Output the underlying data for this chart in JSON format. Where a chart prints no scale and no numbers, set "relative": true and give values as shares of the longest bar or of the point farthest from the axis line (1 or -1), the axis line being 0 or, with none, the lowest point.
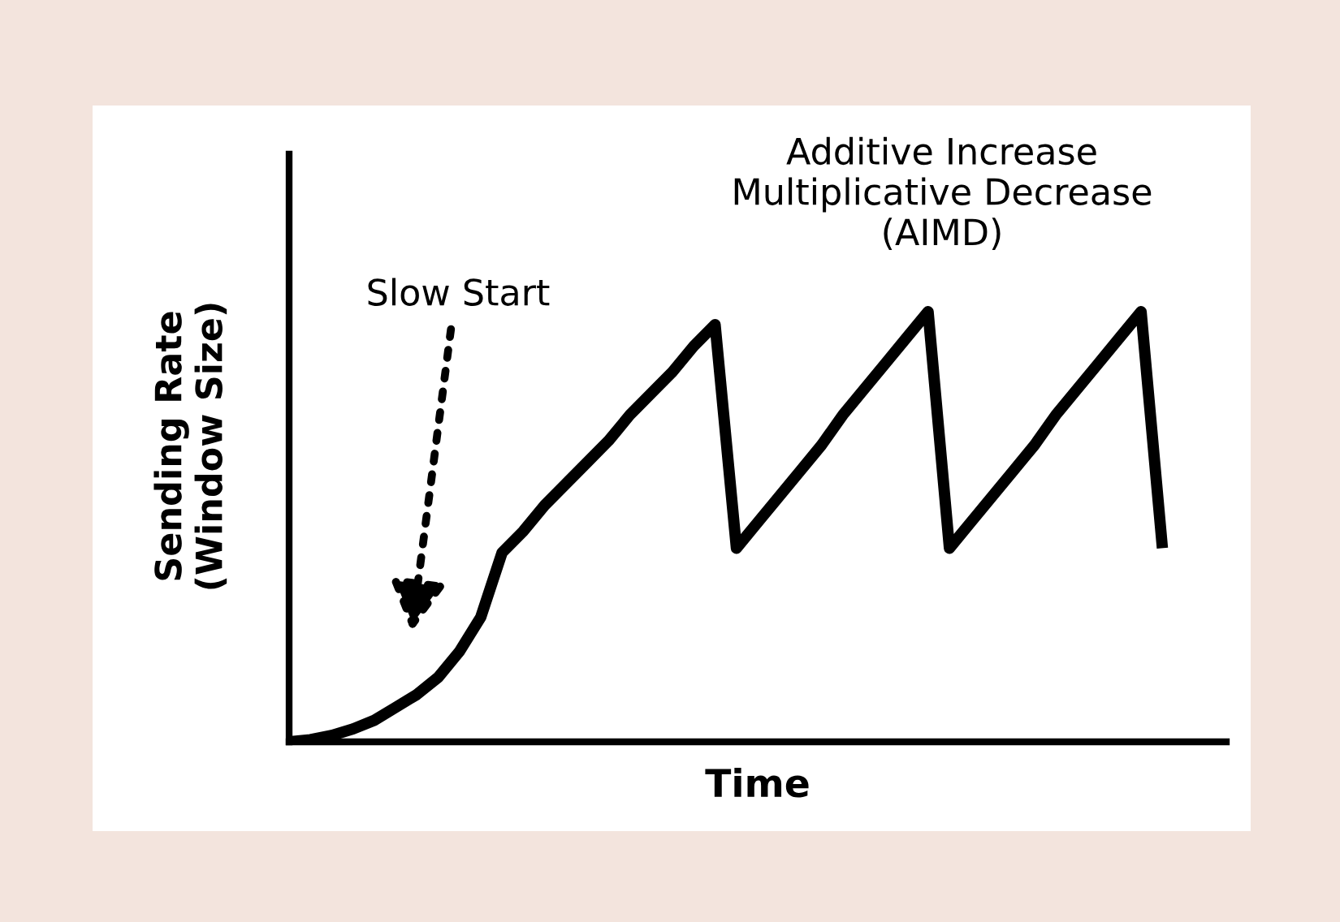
{
  "chart_data": {
    "type": "line",
    "relative": true,
    "color": "#000000",
    "xlabel": "Time",
    "ylabel": "Sending Rate\n(Window Size)",
    "categories": [
      null,
      null,
      null,
      null,
      null,
      null,
      null,
      null,
      null,
      null,
      null,
      null,
      null,
      null,
      null,
      null,
      null,
      null,
      null,
      null,
      null,
      null,
      null,
      null,
      null,
      null,
      null,
      null,
      null,
      null,
      null,
      null,
      null,
      null,
      null,
      null,
      null,
      null,
      null,
      null,
      null,
      null
    ],
    "values": [
      0,
      0.005,
      0.015,
      0.03,
      0.05,
      0.08,
      0.11,
      0.15,
      0.21,
      0.29,
      0.44,
      0.49,
      0.55,
      0.6,
      0.65,
      0.7,
      0.76,
      0.81,
      0.86,
      0.92,
      0.97,
      0.45,
      0.51,
      0.57,
      0.63,
      0.69,
      0.76,
      0.82,
      0.88,
      0.94,
      1.0,
      0.45,
      0.51,
      0.57,
      0.63,
      0.69,
      0.76,
      0.82,
      0.88,
      0.94,
      1.0,
      0.45
    ],
    "annotations": [
      "Slow Start",
      "Additive Increase\nMultiplicative Decrease\n(AIMD)"
    ],
    "grid": false,
    "legend": false,
    "marker": "none",
    "line_style": "solid"
  }
}
